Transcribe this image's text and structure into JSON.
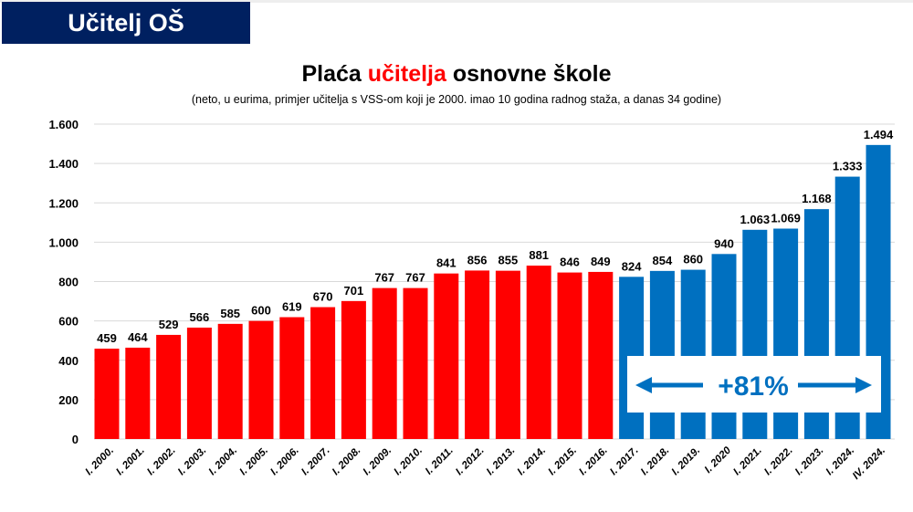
{
  "header": {
    "title": "Učitelj OŠ"
  },
  "chart_data": {
    "type": "bar",
    "title_parts": [
      "Plaća ",
      "učitelja",
      " osnovne škole"
    ],
    "subtitle": "(neto, u eurima, primjer učitelja s VSS-om koji je 2000. imao 10 godina radnog staža, a danas 34 godine)",
    "categories": [
      "I. 2000.",
      "I. 2001.",
      "I. 2002.",
      "I. 2003.",
      "I. 2004.",
      "I. 2005.",
      "I. 2006.",
      "I. 2007.",
      "I. 2008.",
      "I. 2009.",
      "I. 2010.",
      "I. 2011.",
      "I. 2012.",
      "I. 2013.",
      "I. 2014.",
      "I. 2015.",
      "I. 2016.",
      "I. 2017.",
      "I. 2018.",
      "I. 2019.",
      "I. 2020",
      "I. 2021.",
      "I. 2022.",
      "I. 2023.",
      "I. 2024.",
      "IV. 2024."
    ],
    "values": [
      459,
      464,
      529,
      566,
      585,
      600,
      619,
      670,
      701,
      767,
      767,
      841,
      856,
      855,
      881,
      846,
      849,
      824,
      854,
      860,
      940,
      1063,
      1069,
      1168,
      1333,
      1494
    ],
    "value_labels": [
      "459",
      "464",
      "529",
      "566",
      "585",
      "600",
      "619",
      "670",
      "701",
      "767",
      "767",
      "841",
      "856",
      "855",
      "881",
      "846",
      "849",
      "824",
      "854",
      "860",
      "940",
      "1.063",
      "1.069",
      "1.168",
      "1.333",
      "1.494"
    ],
    "ylim": [
      0,
      1600
    ],
    "yticks": [
      0,
      200,
      400,
      600,
      800,
      1000,
      1200,
      1400,
      1600
    ],
    "ytick_labels": [
      "0",
      "200",
      "400",
      "600",
      "800",
      "1.000",
      "1.200",
      "1.400",
      "1.600"
    ],
    "grid": true,
    "colors": {
      "red_period": "#ff0000",
      "blue_period": "#0070c0",
      "title_accent": "#ff0000",
      "callout": "#0070c0"
    },
    "red_count": 17,
    "annotation": "+81%"
  }
}
